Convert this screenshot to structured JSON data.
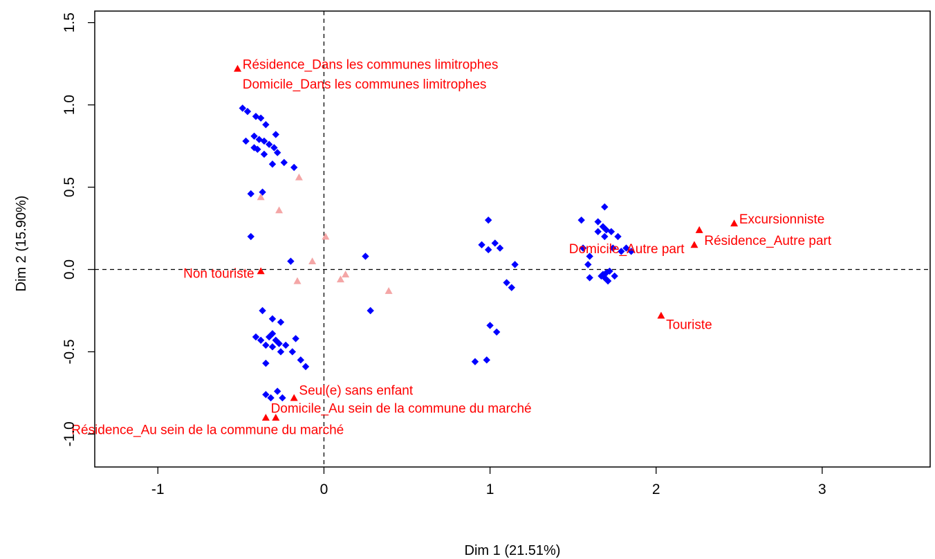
{
  "chart_data": {
    "type": "scatter",
    "xlabel": "Dim 1 (21.51%)",
    "ylabel": "Dim 2 (15.90%)",
    "xlim": [
      -1.38,
      3.65
    ],
    "ylim": [
      -1.2,
      1.57
    ],
    "x_ticks": [
      -1,
      0,
      1,
      2,
      3
    ],
    "y_ticks": [
      -1.0,
      -0.5,
      0.0,
      0.5,
      1.0,
      1.5
    ],
    "x_tick_labels": [
      "-1",
      "0",
      "1",
      "2",
      "3"
    ],
    "y_tick_labels": [
      "-1.0",
      "-0.5",
      "0.0",
      "0.5",
      "1.0",
      "1.5"
    ],
    "reference_lines": {
      "x": 0,
      "y": 0,
      "style": "dashed"
    },
    "grid": false,
    "colors": {
      "individuals": "#0000ff",
      "active_categories": "#ff0000",
      "other_categories": "#f4a6a6",
      "axes": "#000000"
    },
    "series": [
      {
        "marker": "diamond",
        "points": [
          [
            -0.49,
            0.98
          ],
          [
            -0.46,
            0.96
          ],
          [
            -0.41,
            0.93
          ],
          [
            -0.38,
            0.92
          ],
          [
            -0.42,
            0.81
          ],
          [
            -0.39,
            0.79
          ],
          [
            -0.36,
            0.78
          ],
          [
            -0.33,
            0.76
          ],
          [
            -0.3,
            0.74
          ],
          [
            -0.29,
            0.82
          ],
          [
            -0.35,
            0.88
          ],
          [
            -0.47,
            0.78
          ],
          [
            -0.42,
            0.74
          ],
          [
            -0.4,
            0.73
          ],
          [
            -0.36,
            0.7
          ],
          [
            -0.28,
            0.71
          ],
          [
            -0.31,
            0.64
          ],
          [
            -0.24,
            0.65
          ],
          [
            -0.18,
            0.62
          ],
          [
            -0.44,
            0.46
          ],
          [
            -0.37,
            0.47
          ],
          [
            -0.44,
            0.2
          ],
          [
            -0.2,
            0.05
          ],
          [
            0.25,
            0.08
          ],
          [
            0.28,
            -0.25
          ],
          [
            -0.37,
            -0.25
          ],
          [
            -0.41,
            -0.41
          ],
          [
            -0.38,
            -0.43
          ],
          [
            -0.31,
            -0.39
          ],
          [
            -0.33,
            -0.41
          ],
          [
            -0.29,
            -0.43
          ],
          [
            -0.27,
            -0.45
          ],
          [
            -0.23,
            -0.46
          ],
          [
            -0.35,
            -0.46
          ],
          [
            -0.31,
            -0.47
          ],
          [
            -0.26,
            -0.5
          ],
          [
            -0.31,
            -0.3
          ],
          [
            -0.26,
            -0.32
          ],
          [
            -0.17,
            -0.42
          ],
          [
            -0.19,
            -0.5
          ],
          [
            -0.14,
            -0.55
          ],
          [
            -0.11,
            -0.59
          ],
          [
            -0.35,
            -0.57
          ],
          [
            -0.35,
            -0.76
          ],
          [
            -0.32,
            -0.78
          ],
          [
            -0.28,
            -0.74
          ],
          [
            -0.25,
            -0.78
          ],
          [
            0.99,
            0.3
          ],
          [
            0.95,
            0.15
          ],
          [
            0.99,
            0.12
          ],
          [
            1.03,
            0.16
          ],
          [
            1.06,
            0.13
          ],
          [
            1.15,
            0.03
          ],
          [
            1.1,
            -0.08
          ],
          [
            1.13,
            -0.11
          ],
          [
            1.0,
            -0.34
          ],
          [
            1.04,
            -0.38
          ],
          [
            0.91,
            -0.56
          ],
          [
            0.98,
            -0.55
          ],
          [
            1.55,
            0.3
          ],
          [
            1.69,
            0.38
          ],
          [
            1.65,
            0.29
          ],
          [
            1.68,
            0.26
          ],
          [
            1.7,
            0.24
          ],
          [
            1.73,
            0.23
          ],
          [
            1.65,
            0.23
          ],
          [
            1.69,
            0.2
          ],
          [
            1.77,
            0.2
          ],
          [
            1.74,
            0.13
          ],
          [
            1.79,
            0.11
          ],
          [
            1.82,
            0.13
          ],
          [
            1.85,
            0.11
          ],
          [
            1.56,
            0.13
          ],
          [
            1.6,
            0.08
          ],
          [
            1.59,
            0.03
          ],
          [
            1.68,
            -0.03
          ],
          [
            1.7,
            -0.02
          ],
          [
            1.72,
            -0.01
          ],
          [
            1.67,
            -0.04
          ],
          [
            1.69,
            -0.05
          ],
          [
            1.71,
            -0.07
          ],
          [
            1.75,
            -0.04
          ],
          [
            1.6,
            -0.05
          ]
        ]
      },
      {
        "marker": "triangle",
        "points": [
          [
            -0.38,
            0.44
          ],
          [
            -0.27,
            0.36
          ],
          [
            -0.15,
            0.56
          ],
          [
            0.01,
            0.2
          ],
          [
            -0.07,
            0.05
          ],
          [
            -0.16,
            -0.07
          ],
          [
            0.1,
            -0.06
          ],
          [
            0.13,
            -0.03
          ],
          [
            0.39,
            -0.13
          ]
        ]
      },
      {
        "marker": "triangle",
        "points": [
          {
            "x": -0.52,
            "y": 1.22,
            "label": "Résidence_Dans les communes limitrophes",
            "label_anchor": "start",
            "label_dx": 0.03,
            "label_dy": 0.02
          },
          {
            "x": -0.52,
            "y": 1.22,
            "label": "Domicile_Dans les communes limitrophes",
            "label_anchor": "start",
            "label_dx": 0.03,
            "label_dy": -0.1
          },
          {
            "x": -0.38,
            "y": -0.01,
            "label": "Non touriste",
            "label_anchor": "end",
            "label_dx": -0.04,
            "label_dy": -0.02
          },
          {
            "x": -0.18,
            "y": -0.78,
            "label": "Seul(e) sans enfant",
            "label_anchor": "start",
            "label_dx": 0.03,
            "label_dy": 0.04
          },
          {
            "x": -0.35,
            "y": -0.9,
            "label": "Domicile_Au sein de la commune du marché",
            "label_anchor": "start",
            "label_dx": 0.03,
            "label_dy": 0.05
          },
          {
            "x": -0.29,
            "y": -0.9,
            "label": "Résidence_Au sein de la commune du marché",
            "label_anchor": "end",
            "label_dx": 0.41,
            "label_dy": -0.08
          },
          {
            "x": 2.47,
            "y": 0.28,
            "label": "Excursionniste",
            "label_anchor": "start",
            "label_dx": 0.03,
            "label_dy": 0.02
          },
          {
            "x": 2.26,
            "y": 0.24,
            "label": "Résidence_Autre part",
            "label_anchor": "start",
            "label_dx": 0.03,
            "label_dy": -0.07
          },
          {
            "x": 2.23,
            "y": 0.15,
            "label": "Domicile_Autre part",
            "label_anchor": "end",
            "label_dx": -0.06,
            "label_dy": -0.03
          },
          {
            "x": 2.03,
            "y": -0.28,
            "label": "Touriste",
            "label_anchor": "start",
            "label_dx": 0.03,
            "label_dy": -0.06
          }
        ]
      }
    ]
  }
}
